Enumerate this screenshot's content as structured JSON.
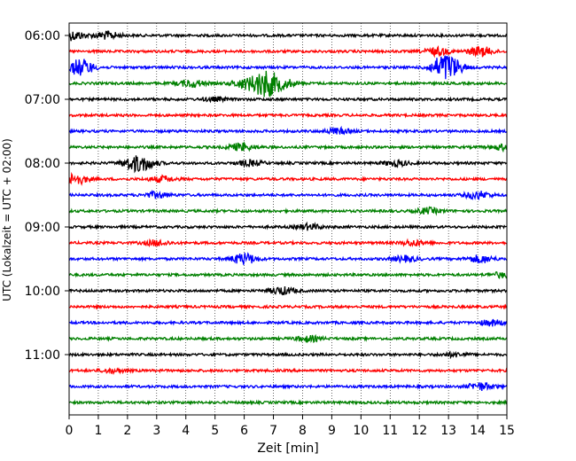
{
  "chart_data": {
    "type": "line",
    "xlabel": "Zeit  [min]",
    "ylabel": "UTC (Lokalzeit = UTC + 02:00)",
    "xlim": [
      0,
      15
    ],
    "x_ticks": [
      0,
      1,
      2,
      3,
      4,
      5,
      6,
      7,
      8,
      9,
      10,
      11,
      12,
      13,
      14,
      15
    ],
    "y_tick_labels": [
      "06:00",
      "07:00",
      "08:00",
      "09:00",
      "10:00",
      "11:00"
    ],
    "grid": "vertical dotted",
    "trace_interval_minutes": 15,
    "trace_colors": [
      "#000000",
      "#ff0000",
      "#0000ff",
      "#008000"
    ],
    "traces": [
      {
        "start": "06:00",
        "color": "#000000",
        "events": [
          {
            "x": 0.1,
            "amp": 5
          },
          {
            "x": 1.3,
            "amp": 4
          }
        ]
      },
      {
        "start": "06:15",
        "color": "#ff0000",
        "events": [
          {
            "x": 12.6,
            "amp": 4
          },
          {
            "x": 14.1,
            "amp": 5
          }
        ]
      },
      {
        "start": "06:30",
        "color": "#0000ff",
        "events": [
          {
            "x": 0.4,
            "amp": 9
          },
          {
            "x": 12.8,
            "amp": 10
          },
          {
            "x": 13.1,
            "amp": 7
          }
        ]
      },
      {
        "start": "06:45",
        "color": "#008000",
        "events": [
          {
            "x": 4.2,
            "amp": 4
          },
          {
            "x": 6.0,
            "amp": 5
          },
          {
            "x": 6.7,
            "amp": 14
          },
          {
            "x": 7.3,
            "amp": 5
          }
        ]
      },
      {
        "start": "07:00",
        "color": "#000000",
        "events": [
          {
            "x": 5.0,
            "amp": 2
          }
        ]
      },
      {
        "start": "07:15",
        "color": "#ff0000",
        "events": []
      },
      {
        "start": "07:30",
        "color": "#0000ff",
        "events": [
          {
            "x": 9.2,
            "amp": 3
          }
        ]
      },
      {
        "start": "07:45",
        "color": "#008000",
        "events": [
          {
            "x": 5.9,
            "amp": 4
          },
          {
            "x": 14.9,
            "amp": 3
          }
        ]
      },
      {
        "start": "08:00",
        "color": "#000000",
        "events": [
          {
            "x": 2.2,
            "amp": 6
          },
          {
            "x": 2.6,
            "amp": 5
          },
          {
            "x": 6.2,
            "amp": 3
          },
          {
            "x": 11.2,
            "amp": 3
          }
        ]
      },
      {
        "start": "08:15",
        "color": "#ff0000",
        "events": [
          {
            "x": 0.2,
            "amp": 6
          },
          {
            "x": 3.2,
            "amp": 3
          }
        ]
      },
      {
        "start": "08:30",
        "color": "#0000ff",
        "events": [
          {
            "x": 3.0,
            "amp": 3
          },
          {
            "x": 14.0,
            "amp": 4
          }
        ]
      },
      {
        "start": "08:45",
        "color": "#008000",
        "events": [
          {
            "x": 12.3,
            "amp": 3
          }
        ]
      },
      {
        "start": "09:00",
        "color": "#000000",
        "events": [
          {
            "x": 8.2,
            "amp": 3
          }
        ]
      },
      {
        "start": "09:15",
        "color": "#ff0000",
        "events": [
          {
            "x": 3.0,
            "amp": 3
          },
          {
            "x": 11.8,
            "amp": 3
          }
        ]
      },
      {
        "start": "09:30",
        "color": "#0000ff",
        "events": [
          {
            "x": 6.0,
            "amp": 6
          },
          {
            "x": 11.5,
            "amp": 3
          },
          {
            "x": 14.1,
            "amp": 4
          }
        ]
      },
      {
        "start": "09:45",
        "color": "#008000",
        "events": [
          {
            "x": 14.9,
            "amp": 3
          }
        ]
      },
      {
        "start": "10:00",
        "color": "#000000",
        "events": [
          {
            "x": 7.3,
            "amp": 4
          }
        ]
      },
      {
        "start": "10:15",
        "color": "#ff0000",
        "events": []
      },
      {
        "start": "10:30",
        "color": "#0000ff",
        "events": [
          {
            "x": 14.5,
            "amp": 3
          }
        ]
      },
      {
        "start": "10:45",
        "color": "#008000",
        "events": [
          {
            "x": 8.2,
            "amp": 3
          }
        ]
      },
      {
        "start": "11:00",
        "color": "#000000",
        "events": [
          {
            "x": 13.2,
            "amp": 2
          }
        ]
      },
      {
        "start": "11:15",
        "color": "#ff0000",
        "events": [
          {
            "x": 1.5,
            "amp": 2
          }
        ]
      },
      {
        "start": "11:30",
        "color": "#0000ff",
        "events": [
          {
            "x": 14.1,
            "amp": 4
          }
        ]
      },
      {
        "start": "11:45",
        "color": "#008000",
        "events": []
      }
    ]
  }
}
